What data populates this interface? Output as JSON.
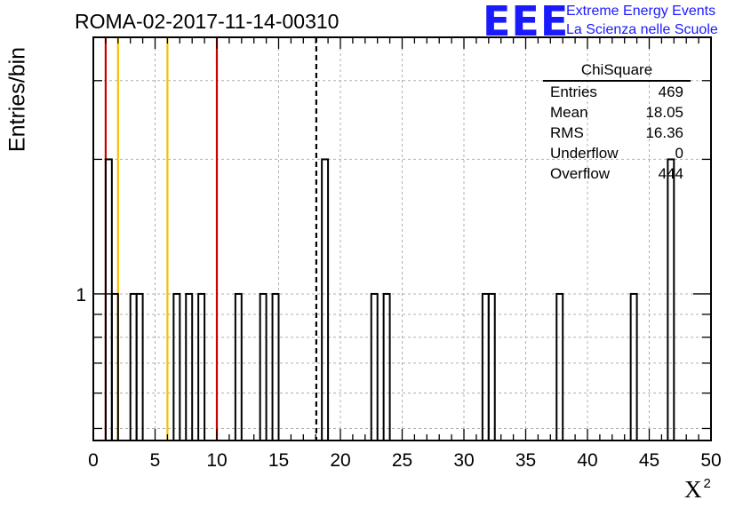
{
  "header": {
    "title": "ROMA-02-2017-11-14-00310",
    "logo_text": "EEE",
    "brand_line1": "Extreme Energy Events",
    "brand_line2": "La Scienza nelle Scuole"
  },
  "stats_box": {
    "title": "ChiSquare",
    "rows": [
      {
        "label": "Entries",
        "value": "469"
      },
      {
        "label": "Mean",
        "value": "18.05"
      },
      {
        "label": "RMS",
        "value": "16.36"
      },
      {
        "label": "Underflow",
        "value": "0"
      },
      {
        "label": "Overflow",
        "value": "444"
      }
    ]
  },
  "colors": {
    "red_lines": "#cc0000",
    "yellow_lines": "#f5c000",
    "histogram": "#000000",
    "grid": "#b0b0b0",
    "brand": "#1a1aff"
  },
  "chart_data": {
    "type": "bar",
    "histogram_style": "step",
    "xlabel": "X",
    "xlabel_superscript": "2",
    "ylabel": "Entries/bin",
    "xlim": [
      0,
      50
    ],
    "ylim": [
      0.47,
      3.75
    ],
    "log_y": true,
    "grid": true,
    "bin_width": 0.5,
    "x_ticks": [
      0,
      5,
      10,
      15,
      20,
      25,
      30,
      35,
      40,
      45,
      50
    ],
    "y_tick_labels": [
      {
        "value": 1,
        "label": "1"
      }
    ],
    "bins": [
      {
        "x": 1.0,
        "count": 2
      },
      {
        "x": 1.5,
        "count": 1
      },
      {
        "x": 3.0,
        "count": 1
      },
      {
        "x": 3.5,
        "count": 1
      },
      {
        "x": 6.5,
        "count": 1
      },
      {
        "x": 7.5,
        "count": 1
      },
      {
        "x": 8.5,
        "count": 1
      },
      {
        "x": 11.5,
        "count": 1
      },
      {
        "x": 13.5,
        "count": 1
      },
      {
        "x": 14.5,
        "count": 1
      },
      {
        "x": 18.5,
        "count": 2
      },
      {
        "x": 22.5,
        "count": 1
      },
      {
        "x": 23.5,
        "count": 1
      },
      {
        "x": 31.5,
        "count": 1
      },
      {
        "x": 32.0,
        "count": 1
      },
      {
        "x": 37.5,
        "count": 1
      },
      {
        "x": 43.5,
        "count": 1
      },
      {
        "x": 46.5,
        "count": 2
      }
    ],
    "reference_lines": [
      {
        "x": 1,
        "color": "red",
        "style": "solid"
      },
      {
        "x": 2,
        "color": "yellow",
        "style": "solid"
      },
      {
        "x": 6,
        "color": "yellow",
        "style": "solid"
      },
      {
        "x": 10,
        "color": "red",
        "style": "solid"
      },
      {
        "x": 18.05,
        "color": "black",
        "style": "dashed"
      }
    ]
  }
}
